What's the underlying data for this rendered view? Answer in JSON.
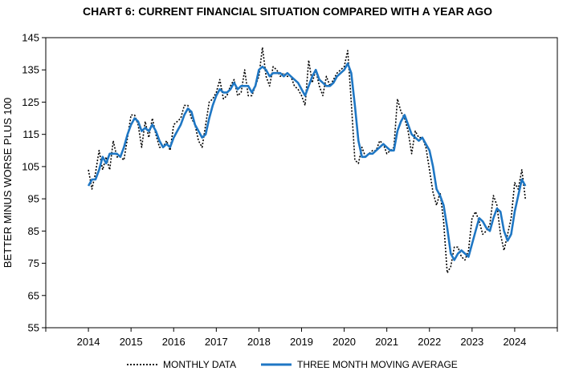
{
  "chart_data": {
    "type": "line",
    "title": "CHART 6: CURRENT FINANCIAL SITUATION COMPARED WITH A YEAR AGO",
    "xlabel": "",
    "ylabel": "BETTER MINUS WORSE PLUS 100",
    "xlim": [
      2013,
      2025
    ],
    "ylim": [
      55,
      145
    ],
    "yticks": [
      55,
      65,
      75,
      85,
      95,
      105,
      115,
      125,
      135,
      145
    ],
    "xticks": [
      2014,
      2015,
      2016,
      2017,
      2018,
      2019,
      2020,
      2021,
      2022,
      2023,
      2024
    ],
    "grid": false,
    "legend": "bottom",
    "colors": {
      "monthly": "#000000",
      "moving_average": "#1f77c4"
    },
    "series": [
      {
        "name": "MONTHLY DATA",
        "style": "dotted",
        "points": [
          [
            2014.0,
            104
          ],
          [
            2014.083,
            98
          ],
          [
            2014.167,
            103
          ],
          [
            2014.25,
            110
          ],
          [
            2014.333,
            104
          ],
          [
            2014.417,
            108
          ],
          [
            2014.5,
            104
          ],
          [
            2014.583,
            113
          ],
          [
            2014.667,
            108
          ],
          [
            2014.75,
            108
          ],
          [
            2014.833,
            107
          ],
          [
            2014.917,
            114
          ],
          [
            2015.0,
            121
          ],
          [
            2015.083,
            121
          ],
          [
            2015.167,
            118
          ],
          [
            2015.25,
            111
          ],
          [
            2015.333,
            119
          ],
          [
            2015.417,
            114
          ],
          [
            2015.5,
            120
          ],
          [
            2015.583,
            115
          ],
          [
            2015.667,
            111
          ],
          [
            2015.75,
            111
          ],
          [
            2015.833,
            113
          ],
          [
            2015.917,
            110
          ],
          [
            2016.0,
            118
          ],
          [
            2016.083,
            119
          ],
          [
            2016.167,
            120
          ],
          [
            2016.25,
            124
          ],
          [
            2016.333,
            124
          ],
          [
            2016.417,
            120
          ],
          [
            2016.5,
            118
          ],
          [
            2016.583,
            113
          ],
          [
            2016.667,
            111
          ],
          [
            2016.75,
            118
          ],
          [
            2016.833,
            125
          ],
          [
            2016.917,
            126
          ],
          [
            2017.0,
            128
          ],
          [
            2017.083,
            132
          ],
          [
            2017.167,
            126
          ],
          [
            2017.25,
            127
          ],
          [
            2017.333,
            130
          ],
          [
            2017.417,
            132
          ],
          [
            2017.5,
            127
          ],
          [
            2017.583,
            128
          ],
          [
            2017.667,
            135
          ],
          [
            2017.75,
            127
          ],
          [
            2017.833,
            127
          ],
          [
            2017.917,
            130
          ],
          [
            2018.0,
            133
          ],
          [
            2018.083,
            142
          ],
          [
            2018.167,
            133
          ],
          [
            2018.25,
            130
          ],
          [
            2018.333,
            136
          ],
          [
            2018.417,
            135
          ],
          [
            2018.5,
            133
          ],
          [
            2018.583,
            134
          ],
          [
            2018.667,
            133
          ],
          [
            2018.75,
            133
          ],
          [
            2018.833,
            130
          ],
          [
            2018.917,
            129
          ],
          [
            2019.0,
            127
          ],
          [
            2019.083,
            124
          ],
          [
            2019.167,
            138
          ],
          [
            2019.25,
            131
          ],
          [
            2019.333,
            135
          ],
          [
            2019.417,
            130
          ],
          [
            2019.5,
            127
          ],
          [
            2019.583,
            133
          ],
          [
            2019.667,
            130
          ],
          [
            2019.75,
            132
          ],
          [
            2019.833,
            134
          ],
          [
            2019.917,
            135
          ],
          [
            2020.0,
            136
          ],
          [
            2020.083,
            141
          ],
          [
            2020.167,
            125
          ],
          [
            2020.25,
            107
          ],
          [
            2020.333,
            106
          ],
          [
            2020.417,
            111
          ],
          [
            2020.5,
            108
          ],
          [
            2020.583,
            109
          ],
          [
            2020.667,
            110
          ],
          [
            2020.75,
            110
          ],
          [
            2020.833,
            113
          ],
          [
            2020.917,
            112
          ],
          [
            2021.0,
            109
          ],
          [
            2021.083,
            110
          ],
          [
            2021.167,
            111
          ],
          [
            2021.25,
            126
          ],
          [
            2021.333,
            122
          ],
          [
            2021.417,
            120
          ],
          [
            2021.5,
            116
          ],
          [
            2021.583,
            109
          ],
          [
            2021.667,
            116
          ],
          [
            2021.75,
            114
          ],
          [
            2021.833,
            114
          ],
          [
            2021.917,
            111
          ],
          [
            2022.0,
            104
          ],
          [
            2022.083,
            97
          ],
          [
            2022.167,
            93
          ],
          [
            2022.25,
            97
          ],
          [
            2022.333,
            88
          ],
          [
            2022.417,
            72
          ],
          [
            2022.5,
            74
          ],
          [
            2022.583,
            80
          ],
          [
            2022.667,
            80
          ],
          [
            2022.75,
            77
          ],
          [
            2022.833,
            76
          ],
          [
            2022.917,
            79
          ],
          [
            2023.0,
            89
          ],
          [
            2023.083,
            91
          ],
          [
            2023.167,
            88
          ],
          [
            2023.25,
            84
          ],
          [
            2023.333,
            85
          ],
          [
            2023.417,
            87
          ],
          [
            2023.5,
            96
          ],
          [
            2023.583,
            93
          ],
          [
            2023.667,
            84
          ],
          [
            2023.75,
            79
          ],
          [
            2023.833,
            84
          ],
          [
            2023.917,
            89
          ],
          [
            2024.0,
            100
          ],
          [
            2024.083,
            98
          ],
          [
            2024.167,
            104
          ],
          [
            2024.25,
            95
          ]
        ]
      },
      {
        "name": "THREE MONTH MOVING AVERAGE",
        "style": "solid",
        "points": [
          [
            2014.0,
            99
          ],
          [
            2014.083,
            101
          ],
          [
            2014.167,
            101
          ],
          [
            2014.25,
            104
          ],
          [
            2014.333,
            108
          ],
          [
            2014.417,
            106
          ],
          [
            2014.5,
            109
          ],
          [
            2014.583,
            109
          ],
          [
            2014.667,
            109
          ],
          [
            2014.75,
            108
          ],
          [
            2014.833,
            111
          ],
          [
            2014.917,
            115
          ],
          [
            2015.0,
            118
          ],
          [
            2015.083,
            120
          ],
          [
            2015.167,
            119
          ],
          [
            2015.25,
            116
          ],
          [
            2015.333,
            117
          ],
          [
            2015.417,
            116
          ],
          [
            2015.5,
            118
          ],
          [
            2015.583,
            116
          ],
          [
            2015.667,
            113
          ],
          [
            2015.75,
            111
          ],
          [
            2015.833,
            112
          ],
          [
            2015.917,
            111
          ],
          [
            2016.0,
            114
          ],
          [
            2016.083,
            116
          ],
          [
            2016.167,
            118
          ],
          [
            2016.25,
            121
          ],
          [
            2016.333,
            123
          ],
          [
            2016.417,
            122
          ],
          [
            2016.5,
            118
          ],
          [
            2016.583,
            116
          ],
          [
            2016.667,
            114
          ],
          [
            2016.75,
            115
          ],
          [
            2016.833,
            120
          ],
          [
            2016.917,
            124
          ],
          [
            2017.0,
            127
          ],
          [
            2017.083,
            129
          ],
          [
            2017.167,
            128
          ],
          [
            2017.25,
            128
          ],
          [
            2017.333,
            129
          ],
          [
            2017.417,
            131
          ],
          [
            2017.5,
            129
          ],
          [
            2017.583,
            130
          ],
          [
            2017.667,
            130
          ],
          [
            2017.75,
            130
          ],
          [
            2017.833,
            128
          ],
          [
            2017.917,
            130
          ],
          [
            2018.0,
            135
          ],
          [
            2018.083,
            136
          ],
          [
            2018.167,
            135
          ],
          [
            2018.25,
            133
          ],
          [
            2018.333,
            134
          ],
          [
            2018.417,
            134
          ],
          [
            2018.5,
            134
          ],
          [
            2018.583,
            133
          ],
          [
            2018.667,
            134
          ],
          [
            2018.75,
            133
          ],
          [
            2018.833,
            132
          ],
          [
            2018.917,
            131
          ],
          [
            2019.0,
            129
          ],
          [
            2019.083,
            127
          ],
          [
            2019.167,
            130
          ],
          [
            2019.25,
            133
          ],
          [
            2019.333,
            135
          ],
          [
            2019.417,
            132
          ],
          [
            2019.5,
            131
          ],
          [
            2019.583,
            130
          ],
          [
            2019.667,
            130
          ],
          [
            2019.75,
            131
          ],
          [
            2019.833,
            133
          ],
          [
            2019.917,
            134
          ],
          [
            2020.0,
            135
          ],
          [
            2020.083,
            137
          ],
          [
            2020.167,
            134
          ],
          [
            2020.25,
            124
          ],
          [
            2020.333,
            113
          ],
          [
            2020.417,
            108
          ],
          [
            2020.5,
            108
          ],
          [
            2020.583,
            109
          ],
          [
            2020.667,
            109
          ],
          [
            2020.75,
            110
          ],
          [
            2020.833,
            111
          ],
          [
            2020.917,
            112
          ],
          [
            2021.0,
            111
          ],
          [
            2021.083,
            110
          ],
          [
            2021.167,
            110
          ],
          [
            2021.25,
            116
          ],
          [
            2021.333,
            119
          ],
          [
            2021.417,
            121
          ],
          [
            2021.5,
            118
          ],
          [
            2021.583,
            115
          ],
          [
            2021.667,
            114
          ],
          [
            2021.75,
            113
          ],
          [
            2021.833,
            114
          ],
          [
            2021.917,
            112
          ],
          [
            2022.0,
            110
          ],
          [
            2022.083,
            105
          ],
          [
            2022.167,
            98
          ],
          [
            2022.25,
            96
          ],
          [
            2022.333,
            93
          ],
          [
            2022.417,
            86
          ],
          [
            2022.5,
            78
          ],
          [
            2022.583,
            76
          ],
          [
            2022.667,
            78
          ],
          [
            2022.75,
            79
          ],
          [
            2022.833,
            78
          ],
          [
            2022.917,
            77
          ],
          [
            2023.0,
            81
          ],
          [
            2023.083,
            85
          ],
          [
            2023.167,
            89
          ],
          [
            2023.25,
            88
          ],
          [
            2023.333,
            86
          ],
          [
            2023.417,
            85
          ],
          [
            2023.5,
            89
          ],
          [
            2023.583,
            92
          ],
          [
            2023.667,
            91
          ],
          [
            2023.75,
            85
          ],
          [
            2023.833,
            82
          ],
          [
            2023.917,
            84
          ],
          [
            2024.0,
            91
          ],
          [
            2024.083,
            96
          ],
          [
            2024.167,
            101
          ],
          [
            2024.25,
            99
          ]
        ]
      }
    ]
  }
}
